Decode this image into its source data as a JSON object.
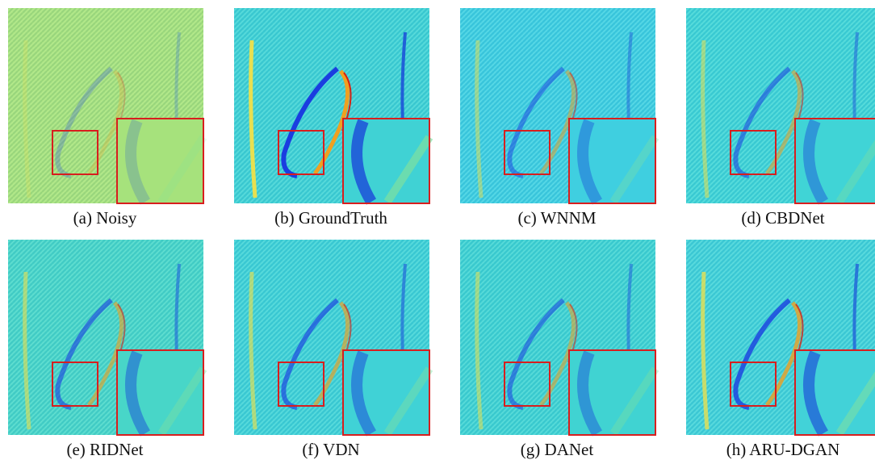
{
  "figure": {
    "panels": [
      {
        "caption": "(a) Noisy"
      },
      {
        "caption": "(b) GroundTruth"
      },
      {
        "caption": "(c) WNNM"
      },
      {
        "caption": "(d) CBDNet"
      },
      {
        "caption": "(e) RIDNet"
      },
      {
        "caption": "(f) VDN"
      },
      {
        "caption": "(g) DANet"
      },
      {
        "caption": "(h) ARU-DGAN"
      }
    ]
  }
}
